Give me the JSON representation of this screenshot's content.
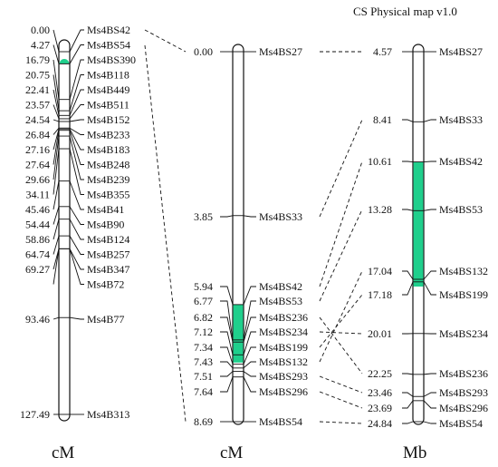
{
  "title": "CS Physical map v1.0",
  "map1": {
    "unit": "cM",
    "max": 127.49,
    "markers": [
      {
        "pos": "0.00",
        "name": "Ms4BS42"
      },
      {
        "pos": "4.27",
        "name": "Ms4BS54"
      },
      {
        "pos": "16.79",
        "name": "Ms4BS390"
      },
      {
        "pos": "20.75",
        "name": "Ms4B118"
      },
      {
        "pos": "22.41",
        "name": "Ms4B449"
      },
      {
        "pos": "23.57",
        "name": "Ms4B511"
      },
      {
        "pos": "24.54",
        "name": "Ms4B152"
      },
      {
        "pos": "26.84",
        "name": "Ms4B233"
      },
      {
        "pos": "27.16",
        "name": "Ms4B183"
      },
      {
        "pos": "27.64",
        "name": "Ms4B248"
      },
      {
        "pos": "29.66",
        "name": "Ms4B239"
      },
      {
        "pos": "34.11",
        "name": "Ms4B355"
      },
      {
        "pos": "45.46",
        "name": "Ms4B41"
      },
      {
        "pos": "54.44",
        "name": "Ms4B90"
      },
      {
        "pos": "58.86",
        "name": "Ms4B124"
      },
      {
        "pos": "64.74",
        "name": "Ms4B257"
      },
      {
        "pos": "69.27",
        "name": "Ms4B347"
      },
      {
        "pos": "",
        "name": "Ms4B72"
      },
      {
        "pos": "93.46",
        "name": "Ms4B77"
      },
      {
        "pos": "127.49",
        "name": "Ms4B313"
      }
    ],
    "highlight": [
      3.0,
      4.27
    ]
  },
  "map2": {
    "unit": "cM",
    "max": 8.69,
    "markers": [
      {
        "pos": "0.00",
        "name": "Ms4BS27"
      },
      {
        "pos": "3.85",
        "name": "Ms4BS33"
      },
      {
        "pos": "5.94",
        "name": "Ms4BS42"
      },
      {
        "pos": "6.77",
        "name": "Ms4BS53"
      },
      {
        "pos": "6.82",
        "name": "Ms4BS236"
      },
      {
        "pos": "7.12",
        "name": "Ms4BS234"
      },
      {
        "pos": "7.34",
        "name": "Ms4BS199"
      },
      {
        "pos": "7.43",
        "name": "Ms4BS132"
      },
      {
        "pos": "7.51",
        "name": "Ms4BS293"
      },
      {
        "pos": "7.64",
        "name": "Ms4BS296"
      },
      {
        "pos": "8.69",
        "name": "Ms4BS54"
      }
    ],
    "highlight": [
      5.94,
      7.43
    ]
  },
  "map3": {
    "unit": "Mb",
    "min": 4.57,
    "max": 24.84,
    "markers": [
      {
        "pos": "4.57",
        "name": "Ms4BS27"
      },
      {
        "pos": "8.41",
        "name": "Ms4BS33"
      },
      {
        "pos": "10.61",
        "name": "Ms4BS42"
      },
      {
        "pos": "13.28",
        "name": "Ms4BS53"
      },
      {
        "pos": "17.04",
        "name": "Ms4BS132"
      },
      {
        "pos": "17.18",
        "name": "Ms4BS199"
      },
      {
        "pos": "20.01",
        "name": "Ms4BS234"
      },
      {
        "pos": "22.25",
        "name": "Ms4BS236"
      },
      {
        "pos": "23.46",
        "name": "Ms4BS293"
      },
      {
        "pos": "23.69",
        "name": "Ms4BS296"
      },
      {
        "pos": "24.84",
        "name": "Ms4BS54"
      }
    ],
    "highlight": [
      10.61,
      17.04
    ]
  },
  "highlight_color": "#1fcf8c"
}
